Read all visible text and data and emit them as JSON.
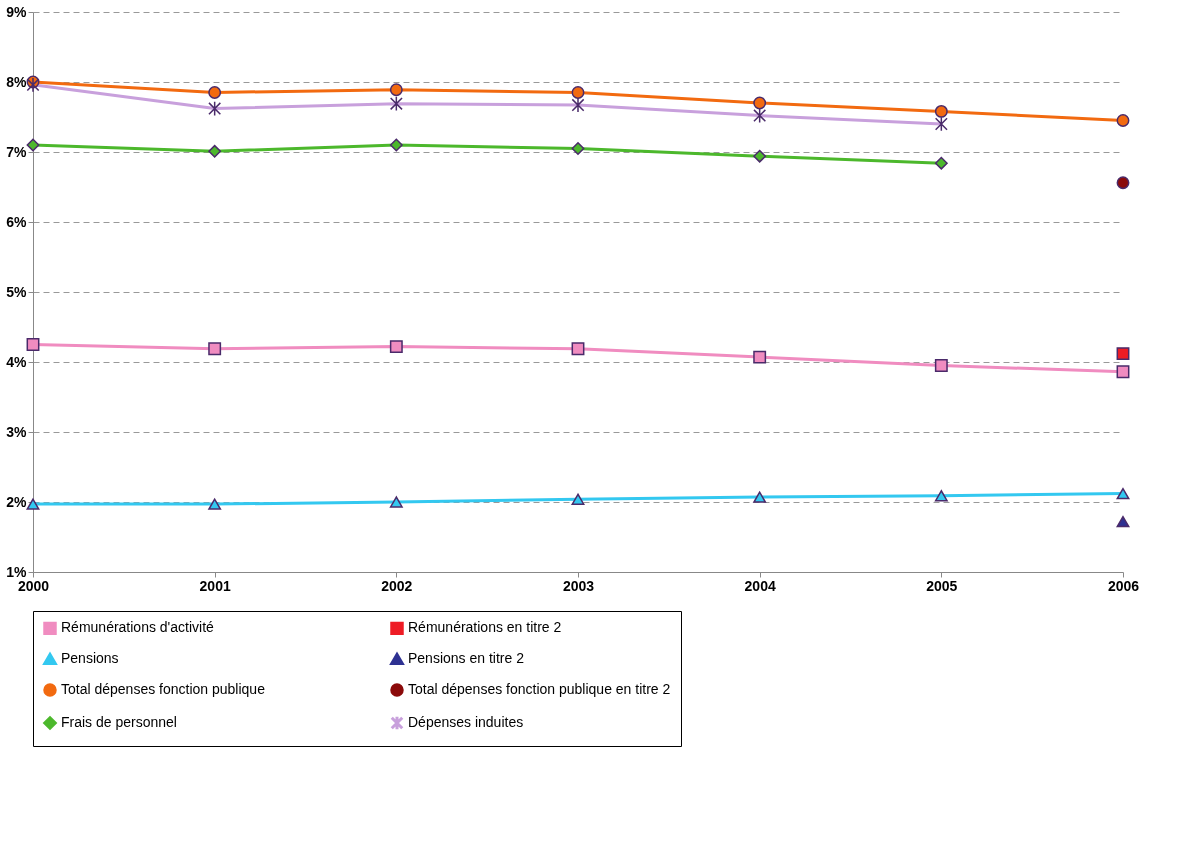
{
  "chart_data": {
    "type": "line",
    "categories": [
      "2000",
      "2001",
      "2002",
      "2003",
      "2004",
      "2005",
      "2006"
    ],
    "ylim": [
      1,
      9
    ],
    "yticks": [
      {
        "value": 1,
        "label": "1%"
      },
      {
        "value": 2,
        "label": "2%"
      },
      {
        "value": 3,
        "label": "3%"
      },
      {
        "value": 4,
        "label": "4%"
      },
      {
        "value": 5,
        "label": "5%"
      },
      {
        "value": 6,
        "label": "6%"
      },
      {
        "value": 7,
        "label": "7%"
      },
      {
        "value": 8,
        "label": "8%"
      },
      {
        "value": 9,
        "label": "9%"
      }
    ],
    "grid": "y",
    "legend": "bottom",
    "line_style": "solid",
    "series": [
      {
        "name": "Rémunérations d'activité",
        "color": "#f08cc0",
        "marker": "square",
        "values": [
          4.25,
          4.19,
          4.22,
          4.19,
          4.07,
          3.95,
          3.86
        ]
      },
      {
        "name": "Rémunérations en titre 2",
        "color": "#ee1c25",
        "marker": "square",
        "values": [
          null,
          null,
          null,
          null,
          null,
          null,
          4.12
        ]
      },
      {
        "name": "Pensions",
        "color": "#33c8f0",
        "marker": "triangle",
        "values": [
          1.97,
          1.97,
          2.0,
          2.04,
          2.07,
          2.09,
          2.12
        ]
      },
      {
        "name": "Pensions en titre 2",
        "color": "#2e3192",
        "marker": "triangle",
        "values": [
          null,
          null,
          null,
          null,
          null,
          null,
          1.72
        ]
      },
      {
        "name": "Total dépenses fonction publique",
        "color": "#f26a10",
        "marker": "circle",
        "values": [
          8.0,
          7.85,
          7.89,
          7.85,
          7.7,
          7.58,
          7.45
        ]
      },
      {
        "name": "Total dépenses fonction publique en titre 2",
        "color": "#8b0a0a",
        "marker": "circle",
        "values": [
          null,
          null,
          null,
          null,
          null,
          null,
          6.56
        ]
      },
      {
        "name": "Frais de personnel",
        "color": "#4cb82c",
        "marker": "diamond",
        "values": [
          7.1,
          7.01,
          7.1,
          7.05,
          6.94,
          6.84,
          null
        ]
      },
      {
        "name": "Dépenses induites",
        "color": "#c8a0dc",
        "marker": "cross",
        "values": [
          7.96,
          7.62,
          7.69,
          7.67,
          7.52,
          7.4,
          null
        ]
      }
    ]
  }
}
